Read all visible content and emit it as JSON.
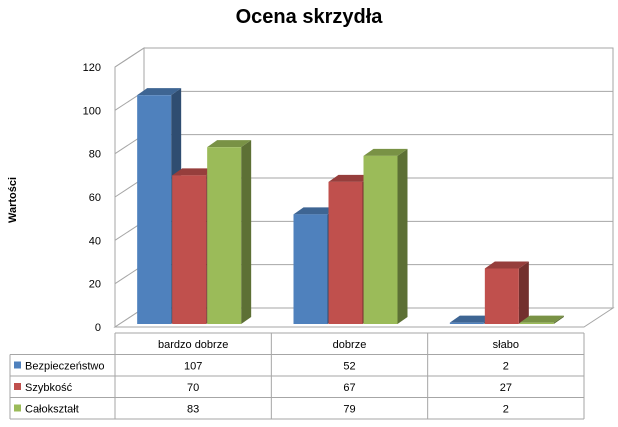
{
  "chart_data": {
    "type": "bar",
    "title": "Ocena skrzydła",
    "ylabel": "Wartości",
    "xlabel": "",
    "ylim": [
      0,
      120
    ],
    "yticks": [
      0,
      20,
      40,
      60,
      80,
      100,
      120
    ],
    "categories": [
      "bardzo dobrze",
      "dobrze",
      "słabo"
    ],
    "series": [
      {
        "name": "Bezpieczeństwo",
        "values": [
          107,
          52,
          2
        ],
        "color": "#4F81BD"
      },
      {
        "name": "Szybkość",
        "values": [
          70,
          67,
          27
        ],
        "color": "#C0504D"
      },
      {
        "name": "Całokształt",
        "values": [
          83,
          79,
          2
        ],
        "color": "#9BBB59"
      }
    ],
    "grid": true,
    "legend": "data-table-left",
    "style": "3d-clustered-column-with-data-table"
  }
}
